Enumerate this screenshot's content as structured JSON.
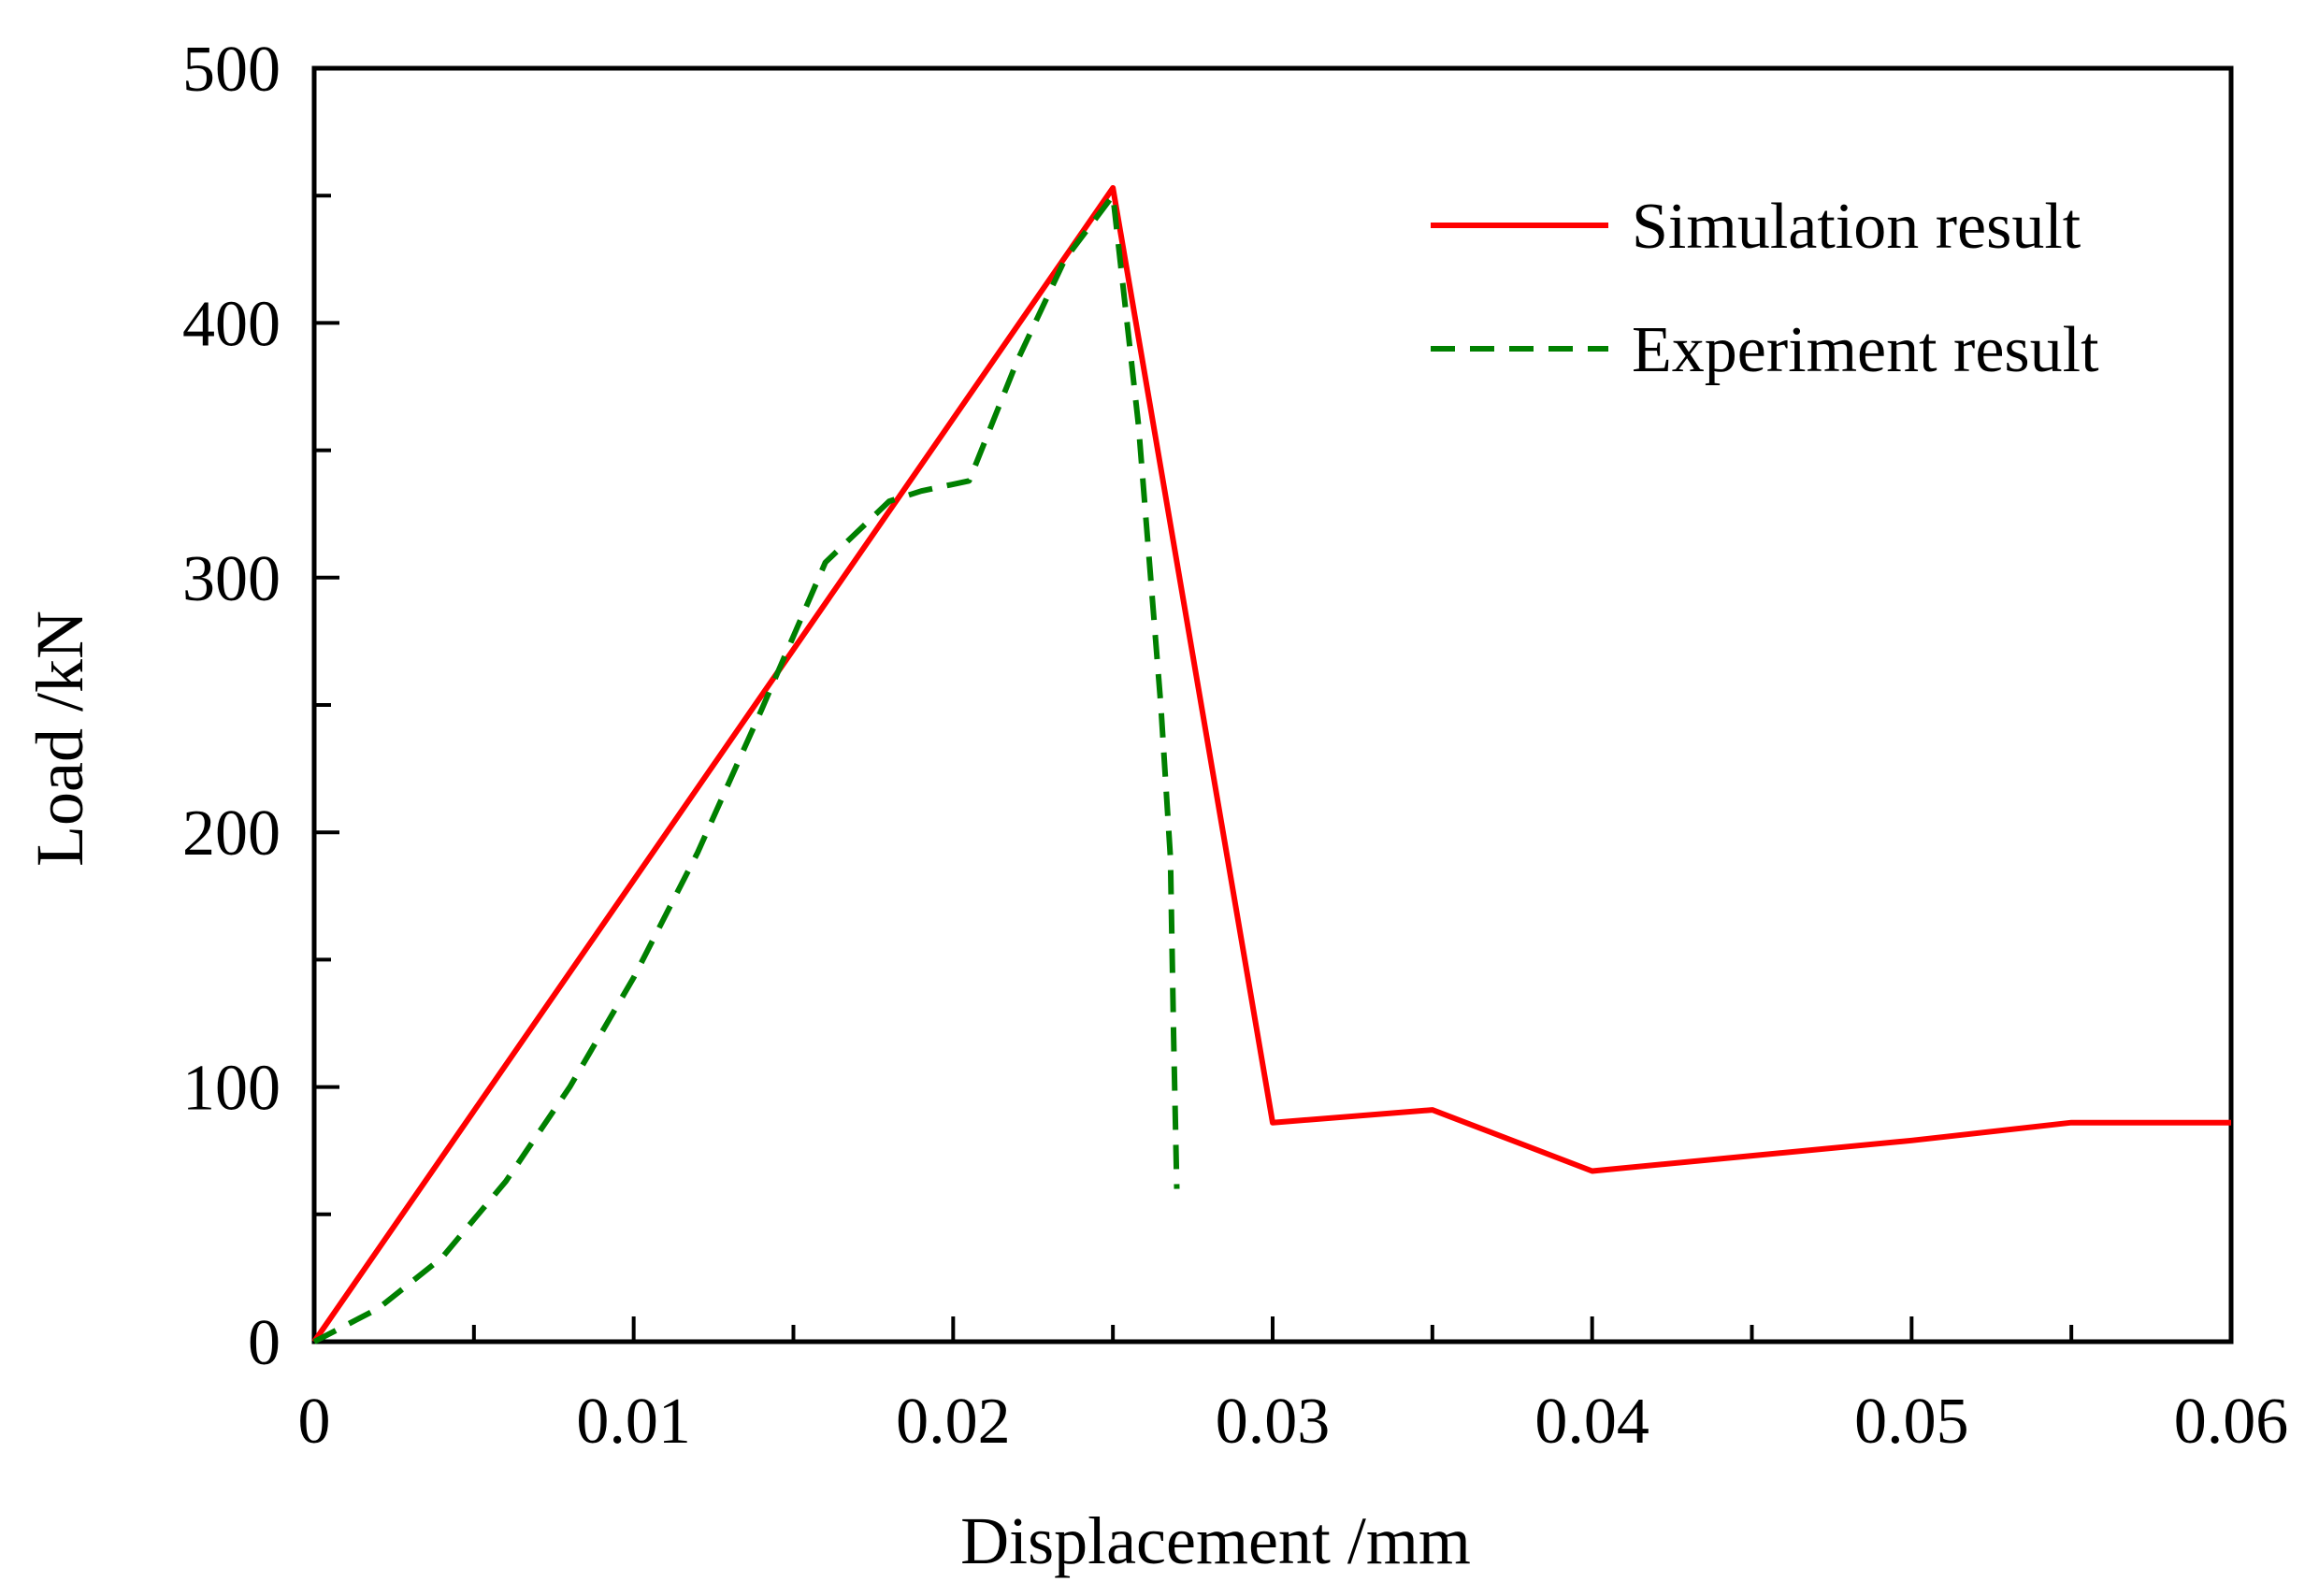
{
  "chart_data": {
    "type": "line",
    "title": "",
    "xlabel": "Displacement /mm",
    "ylabel": "Load /kN",
    "xlim": [
      0,
      0.06
    ],
    "ylim": [
      0,
      500
    ],
    "x_ticks": [
      0,
      0.01,
      0.02,
      0.03,
      0.04,
      0.05,
      0.06
    ],
    "x_tick_labels": [
      "0",
      "0.01",
      "0.02",
      "0.03",
      "0.04",
      "0.05",
      "0.06"
    ],
    "x_minor_ticks": [
      0.005,
      0.015,
      0.025,
      0.035,
      0.045,
      0.055
    ],
    "y_ticks": [
      0,
      100,
      200,
      300,
      400,
      500
    ],
    "y_tick_labels": [
      "0",
      "100",
      "200",
      "300",
      "400",
      "500"
    ],
    "y_minor_ticks": [
      50,
      150,
      250,
      350,
      450
    ],
    "grid": false,
    "legend_position": "top-right",
    "series": [
      {
        "name": "Simulation result",
        "color": "#ff0000",
        "style": "solid",
        "x": [
          0,
          0.025,
          0.03,
          0.035,
          0.04,
          0.045,
          0.05,
          0.055,
          0.06
        ],
        "y": [
          0,
          453,
          86,
          91,
          67,
          73,
          79,
          86,
          86
        ]
      },
      {
        "name": "Experiment result",
        "color": "#008000",
        "style": "dashed",
        "x": [
          0,
          0.002,
          0.004,
          0.006,
          0.008,
          0.01,
          0.012,
          0.014,
          0.016,
          0.018,
          0.019,
          0.0205,
          0.022,
          0.0235,
          0.025,
          0.0258,
          0.0265,
          0.0268,
          0.0269,
          0.027
        ],
        "y": [
          0,
          13,
          33,
          63,
          100,
          143,
          192,
          248,
          306,
          330,
          334,
          338,
          385,
          425,
          450,
          360,
          250,
          190,
          120,
          60
        ]
      }
    ]
  }
}
